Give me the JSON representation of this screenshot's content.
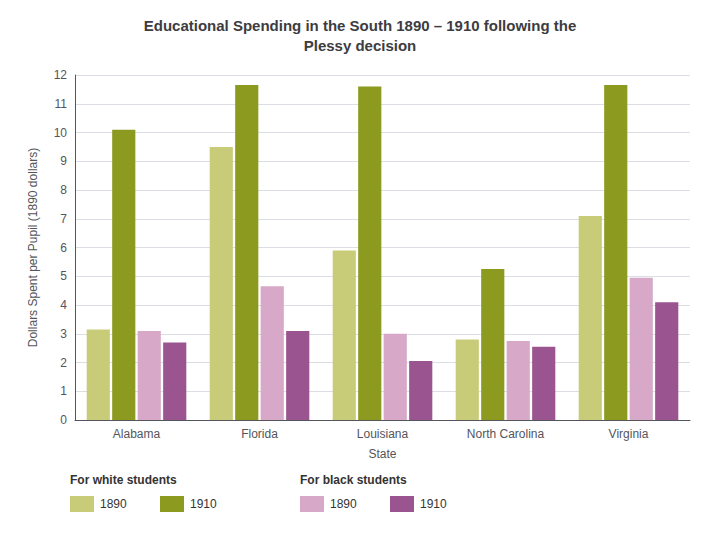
{
  "chart_data": {
    "type": "bar",
    "title": "Educational Spending in the South 1890 – 1910 following the\nPlessy decision",
    "categories": [
      "Alabama",
      "Florida",
      "Louisiana",
      "North Carolina",
      "Virginia"
    ],
    "series": [
      {
        "name": "1890",
        "group": "For white students",
        "color": "#c8cc78",
        "values": [
          3.15,
          9.5,
          5.9,
          2.8,
          7.1
        ]
      },
      {
        "name": "1910",
        "group": "For white students",
        "color": "#8c9a20",
        "values": [
          10.1,
          11.65,
          11.6,
          5.25,
          11.65
        ]
      },
      {
        "name": "1890",
        "group": "For black students",
        "color": "#d8a8c8",
        "values": [
          3.1,
          4.65,
          3.0,
          2.75,
          4.95
        ]
      },
      {
        "name": "1910",
        "group": "For black students",
        "color": "#9a5590",
        "values": [
          2.7,
          3.1,
          2.05,
          2.55,
          4.1
        ]
      }
    ],
    "xlabel": "State",
    "ylabel": "Dollars Spent per Pupil (1890 dollars)",
    "ylim": [
      0,
      12
    ],
    "yticks": [
      0,
      1,
      2,
      3,
      4,
      5,
      6,
      7,
      8,
      9,
      10,
      11,
      12
    ],
    "grid": true
  }
}
